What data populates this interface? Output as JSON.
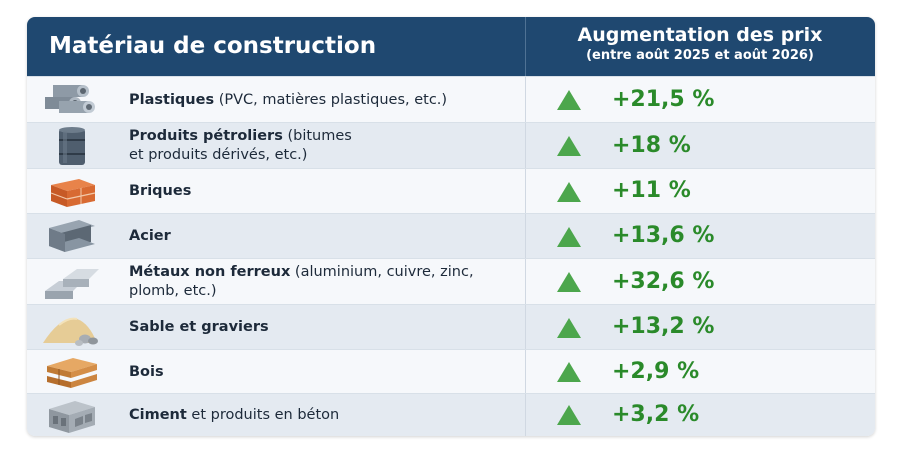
{
  "header": {
    "col1": "Matériau de construction",
    "col2_title": "Augmentation des prix",
    "col2_subtitle": "(entre août 2025 et août 2026)"
  },
  "rows": [
    {
      "name": "Plastiques",
      "detail1": " (PVC, matières plastiques, etc.)",
      "detail2": "",
      "value": "+21,5 %",
      "icon": "pipes-icon"
    },
    {
      "name": "Produits pétroliers",
      "detail1": " (bitumes",
      "detail2": "et produits dérivés, etc.)",
      "value": "+18 %",
      "icon": "oil-barrel-icon"
    },
    {
      "name": "Briques",
      "detail1": "",
      "detail2": "",
      "value": "+11 %",
      "icon": "bricks-icon"
    },
    {
      "name": "Acier",
      "detail1": "",
      "detail2": "",
      "value": "+13,6 %",
      "icon": "steel-beam-icon"
    },
    {
      "name": "Métaux non ferreux",
      "detail1": " (aluminium, cuivre, zinc,",
      "detail2": "plomb, etc.)",
      "value": "+32,6 %",
      "icon": "metal-ingots-icon"
    },
    {
      "name": "Sable et graviers",
      "detail1": "",
      "detail2": "",
      "value": "+13,2 %",
      "icon": "sand-pile-icon"
    },
    {
      "name": "Bois",
      "detail1": "",
      "detail2": "",
      "value": "+2,9 %",
      "icon": "lumber-icon"
    },
    {
      "name": "Ciment",
      "detail1": " et produits en béton",
      "detail2": "",
      "value": "+3,2 %",
      "icon": "concrete-block-icon"
    }
  ]
}
